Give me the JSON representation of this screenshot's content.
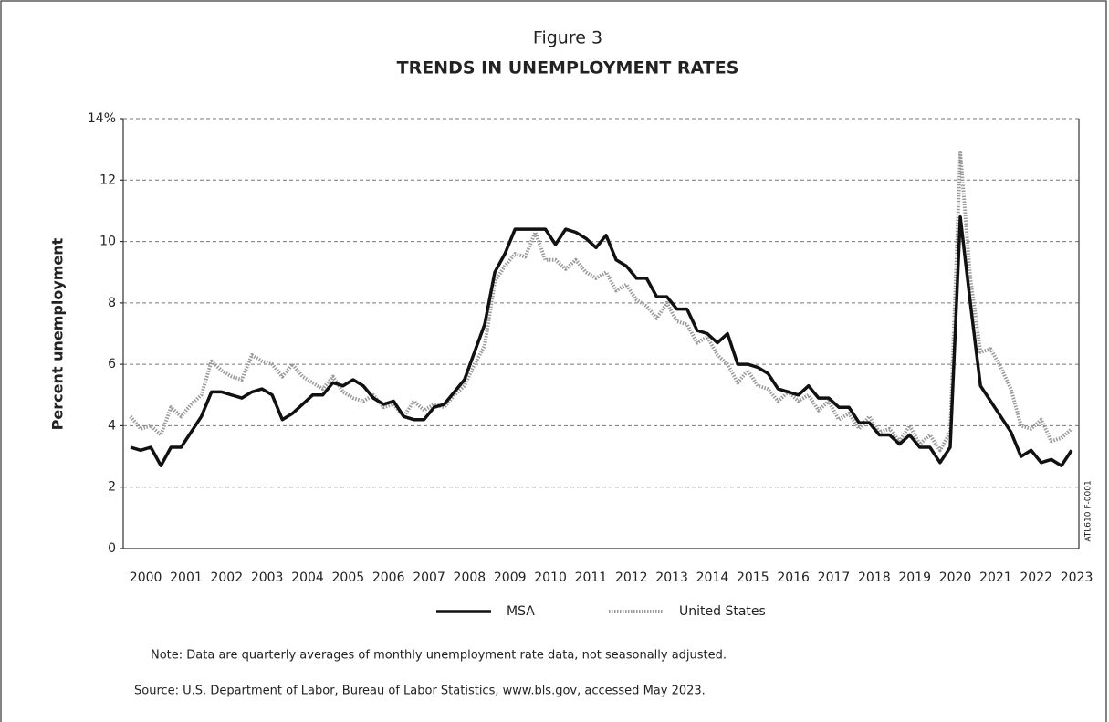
{
  "chart_data": {
    "type": "line",
    "figure_label": "Figure 3",
    "title": "TRENDS IN UNEMPLOYMENT RATES",
    "ylabel": "Percent unemployment",
    "categories": [
      "2000",
      null,
      null,
      null,
      "2001",
      null,
      null,
      null,
      "2002",
      null,
      null,
      null,
      "2003",
      null,
      null,
      null,
      "2004",
      null,
      null,
      null,
      "2005",
      null,
      null,
      null,
      "2006",
      null,
      null,
      null,
      "2007",
      null,
      null,
      null,
      "2008",
      null,
      null,
      null,
      "2009",
      null,
      null,
      null,
      "2010",
      null,
      null,
      null,
      "2011",
      null,
      null,
      null,
      "2012",
      null,
      null,
      null,
      "2013",
      null,
      null,
      null,
      "2014",
      null,
      null,
      null,
      "2015",
      null,
      null,
      null,
      "2016",
      null,
      null,
      null,
      "2017",
      null,
      null,
      null,
      "2018",
      null,
      null,
      null,
      "2019",
      null,
      null,
      null,
      "2020",
      null,
      null,
      null,
      "2021",
      null,
      null,
      null,
      "2022",
      null,
      null,
      null,
      "2023",
      null
    ],
    "series": [
      {
        "name": "MSA",
        "color": "#111111",
        "values": [
          3.3,
          3.2,
          3.3,
          2.7,
          3.3,
          3.3,
          3.8,
          4.3,
          5.1,
          5.1,
          5.0,
          4.9,
          5.1,
          5.2,
          5.0,
          4.2,
          4.4,
          4.7,
          5.0,
          5.0,
          5.4,
          5.3,
          5.5,
          5.3,
          4.9,
          4.7,
          4.8,
          4.3,
          4.2,
          4.2,
          4.6,
          4.7,
          5.1,
          5.5,
          6.4,
          7.3,
          9.0,
          9.6,
          10.4,
          10.4,
          10.4,
          10.4,
          9.9,
          10.4,
          10.3,
          10.1,
          9.8,
          10.2,
          9.4,
          9.2,
          8.8,
          8.8,
          8.2,
          8.2,
          7.8,
          7.8,
          7.1,
          7.0,
          6.7,
          7.0,
          6.0,
          6.0,
          5.9,
          5.7,
          5.2,
          5.1,
          5.0,
          5.3,
          4.9,
          4.9,
          4.6,
          4.6,
          4.1,
          4.1,
          3.7,
          3.7,
          3.4,
          3.7,
          3.3,
          3.3,
          2.8,
          3.3,
          10.8,
          8.0,
          5.3,
          4.8,
          4.3,
          3.8,
          3.0,
          3.2,
          2.8,
          2.9,
          2.7,
          3.2
        ]
      },
      {
        "name": "United States",
        "color": "#9a9a9a",
        "values": [
          4.3,
          3.9,
          4.0,
          3.7,
          4.6,
          4.3,
          4.7,
          5.0,
          6.1,
          5.8,
          5.6,
          5.5,
          6.3,
          6.1,
          6.0,
          5.6,
          6.0,
          5.6,
          5.4,
          5.2,
          5.6,
          5.1,
          4.9,
          4.8,
          5.0,
          4.6,
          4.7,
          4.3,
          4.8,
          4.5,
          4.7,
          4.6,
          5.0,
          5.3,
          6.0,
          6.6,
          8.7,
          9.2,
          9.6,
          9.5,
          10.3,
          9.4,
          9.4,
          9.1,
          9.4,
          9.0,
          8.8,
          9.0,
          8.4,
          8.6,
          8.1,
          7.9,
          7.5,
          8.0,
          7.4,
          7.3,
          6.7,
          6.9,
          6.3,
          6.0,
          5.4,
          5.8,
          5.3,
          5.2,
          4.8,
          5.1,
          4.8,
          5.0,
          4.5,
          4.8,
          4.2,
          4.4,
          3.9,
          4.3,
          3.8,
          3.9,
          3.5,
          4.0,
          3.4,
          3.7,
          3.2,
          3.8,
          12.9,
          8.8,
          6.4,
          6.5,
          5.9,
          5.2,
          4.0,
          3.9,
          4.2,
          3.5,
          3.6,
          3.9
        ]
      }
    ],
    "ylim": [
      0,
      14
    ],
    "yticks": [
      0,
      2,
      4,
      6,
      8,
      10,
      12,
      {
        "value": 14,
        "label": "14%"
      }
    ],
    "grid": true,
    "legend": "bottom",
    "note": "Note:  Data are quarterly averages of monthly unemployment rate data, not seasonally adjusted.",
    "source": "Source:  U.S. Department of Labor, Bureau of Labor Statistics, www.bls.gov, accessed May 2023.",
    "code": "ATL610 F-0001"
  }
}
